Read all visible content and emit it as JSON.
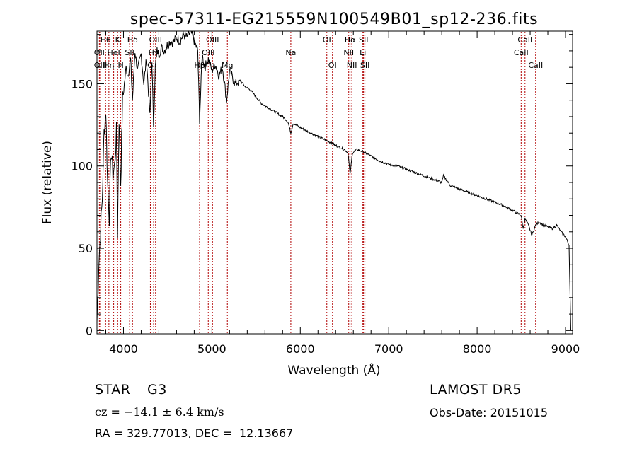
{
  "chart_data": {
    "type": "line",
    "title": "spec-57311-EG215559N100549B01_sp12-236.fits",
    "xlabel": "Wavelength (Å)",
    "ylabel": "Flux (relative)",
    "xlim": [
      3700,
      9080
    ],
    "ylim": [
      -2,
      182
    ],
    "xticks": [
      4000,
      5000,
      6000,
      7000,
      8000,
      9000
    ],
    "xtick_labels": [
      "4000",
      "5000",
      "6000",
      "7000",
      "8000",
      "9000"
    ],
    "yticks": [
      0,
      50,
      100,
      150
    ],
    "ytick_labels": [
      "0",
      "50",
      "100",
      "150"
    ],
    "line_color": "#000000",
    "marker_color": "#b00000",
    "grid": false,
    "series": [
      {
        "x": [
          3700,
          3720,
          3740,
          3760,
          3780,
          3800,
          3820,
          3840,
          3860,
          3880,
          3900,
          3920,
          3933,
          3950,
          3968,
          3990,
          4010,
          4030,
          4050,
          4080,
          4102,
          4130,
          4160,
          4200,
          4230,
          4260,
          4300,
          4320,
          4340,
          4360,
          4380,
          4400,
          4430,
          4460,
          4500,
          4530,
          4560,
          4600,
          4640,
          4680,
          4720,
          4760,
          4800,
          4840,
          4861,
          4890,
          4920,
          4960,
          5000,
          5040,
          5080,
          5120,
          5167,
          5200,
          5260,
          5320,
          5380,
          5440,
          5500,
          5560,
          5620,
          5680,
          5740,
          5800,
          5860,
          5893,
          5920,
          5980,
          6050,
          6120,
          6200,
          6280,
          6350,
          6420,
          6500,
          6540,
          6563,
          6590,
          6640,
          6700,
          6800,
          6900,
          7000,
          7100,
          7200,
          7300,
          7400,
          7500,
          7600,
          7620,
          7700,
          7800,
          7900,
          8000,
          8100,
          8200,
          8300,
          8400,
          8498,
          8520,
          8542,
          8580,
          8620,
          8662,
          8700,
          8750,
          8800,
          8850,
          8900,
          8950,
          9000,
          9040,
          9060
        ],
        "y": [
          5,
          40,
          60,
          80,
          120,
          135,
          90,
          70,
          110,
          95,
          100,
          120,
          60,
          130,
          90,
          140,
          150,
          160,
          155,
          165,
          140,
          170,
          158,
          168,
          150,
          165,
          130,
          165,
          125,
          160,
          170,
          168,
          172,
          170,
          174,
          176,
          175,
          178,
          176,
          180,
          178,
          182,
          176,
          170,
          128,
          168,
          160,
          165,
          158,
          162,
          155,
          160,
          140,
          158,
          150,
          152,
          148,
          146,
          142,
          138,
          136,
          134,
          132,
          130,
          127,
          120,
          126,
          124,
          122,
          120,
          118,
          116,
          114,
          112,
          110,
          108,
          95,
          108,
          110,
          109,
          106,
          103,
          101,
          100,
          98,
          96,
          94,
          92,
          90,
          94,
          88,
          86,
          84,
          82,
          80,
          78,
          76,
          73,
          70,
          62,
          68,
          64,
          58,
          64,
          66,
          64,
          63,
          62,
          64,
          60,
          57,
          52,
          0
        ]
      }
    ],
    "lines": [
      {
        "label": "Hθ",
        "wave": 3798,
        "row": 1
      },
      {
        "label": "OII",
        "wave": 3727,
        "row": 2
      },
      {
        "label": "OIII",
        "wave": 3740,
        "row": 3
      },
      {
        "label": "Hη",
        "wave": 3835,
        "row": 3
      },
      {
        "label": "K",
        "wave": 3934,
        "row": 1
      },
      {
        "label": "HeI",
        "wave": 3889,
        "row": 2
      },
      {
        "label": "H",
        "wave": 3969,
        "row": 3
      },
      {
        "label": "Hδ",
        "wave": 4102,
        "row": 1
      },
      {
        "label": "SII",
        "wave": 4069,
        "row": 2
      },
      {
        "label": "OIII",
        "wave": 4363,
        "row": 1
      },
      {
        "label": "Hγ",
        "wave": 4341,
        "row": 2
      },
      {
        "label": "G",
        "wave": 4304,
        "row": 3
      },
      {
        "label": "OIII",
        "wave": 5007,
        "row": 1
      },
      {
        "label": "OIII",
        "wave": 4959,
        "row": 2
      },
      {
        "label": "Hβ",
        "wave": 4861,
        "row": 3
      },
      {
        "label": "Mg",
        "wave": 5175,
        "row": 3
      },
      {
        "label": "Na",
        "wave": 5893,
        "row": 2
      },
      {
        "label": "OI",
        "wave": 6300,
        "row": 1
      },
      {
        "label": "OI",
        "wave": 6364,
        "row": 3
      },
      {
        "label": "Hα",
        "wave": 6563,
        "row": 1
      },
      {
        "label": "NII",
        "wave": 6548,
        "row": 2
      },
      {
        "label": "NII",
        "wave": 6583,
        "row": 3
      },
      {
        "label": "SII",
        "wave": 6716,
        "row": 1
      },
      {
        "label": "Li",
        "wave": 6708,
        "row": 2
      },
      {
        "label": "SII",
        "wave": 6731,
        "row": 3
      },
      {
        "label": "CaII",
        "wave": 8542,
        "row": 1
      },
      {
        "label": "CaII",
        "wave": 8498,
        "row": 2
      },
      {
        "label": "CaII",
        "wave": 8662,
        "row": 3
      }
    ]
  },
  "info": {
    "object_class": "STAR",
    "subclass": "G3",
    "survey": "LAMOST DR5",
    "cz_line": "cz = −14.1 ± 6.4 km/s",
    "obs_date": "Obs-Date: 20151015",
    "coords": "RA = 329.77013, DEC =  12.13667"
  }
}
